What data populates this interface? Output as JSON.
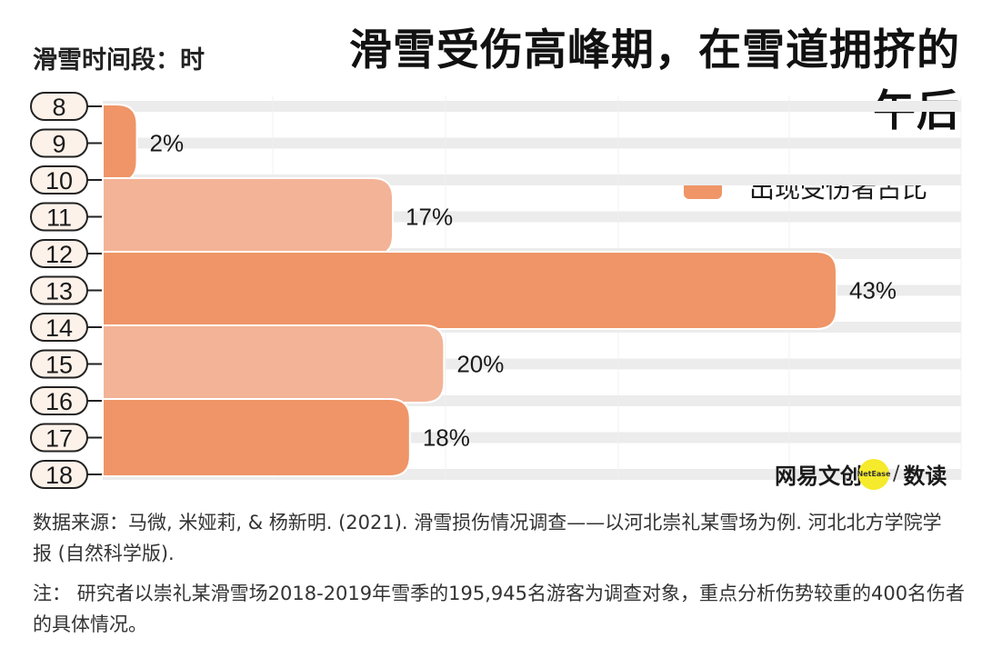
{
  "title": "滑雪受伤高峰期，在雪道拥挤的午后",
  "axis_title": "滑雪时间段：时",
  "legend_label": "出现受伤者占比",
  "brand": {
    "name": "网易文创",
    "badge": "NetEase",
    "sub": "数读"
  },
  "source": "数据来源：马微, 米娅莉, & 杨新明. (2021). 滑雪损伤情况调查——以河北崇礼某雪场为例. 河北北方学院学报 (自然科学版).",
  "note": "注： 研究者以崇礼某滑雪场2018-2019年雪季的195,945名游客为调查对象，重点分析伤势较重的400名伤者的具体情况。",
  "colors": {
    "dark": "#ef9567",
    "light": "#f3b396",
    "track": "#ececec",
    "pill": "#fdf2ea"
  },
  "chart_data": {
    "type": "bar",
    "orientation": "horizontal",
    "title": "滑雪受伤高峰期，在雪道拥挤的午后",
    "ylabel": "滑雪时间段：时",
    "hour_ticks": [
      "8",
      "9",
      "10",
      "11",
      "12",
      "13",
      "14",
      "15",
      "16",
      "17",
      "18"
    ],
    "series": [
      {
        "name": "出现受伤者占比",
        "bars": [
          {
            "from": "8",
            "to": "10",
            "value": 2,
            "label": "2%",
            "shade": "dark"
          },
          {
            "from": "10",
            "to": "12",
            "value": 17,
            "label": "17%",
            "shade": "light"
          },
          {
            "from": "12",
            "to": "14",
            "value": 43,
            "label": "43%",
            "shade": "dark"
          },
          {
            "from": "14",
            "to": "16",
            "value": 20,
            "label": "20%",
            "shade": "light"
          },
          {
            "from": "16",
            "to": "18",
            "value": 18,
            "label": "18%",
            "shade": "dark"
          }
        ]
      }
    ],
    "xlim": [
      0,
      50
    ],
    "grid": true,
    "legend": "top-right"
  }
}
